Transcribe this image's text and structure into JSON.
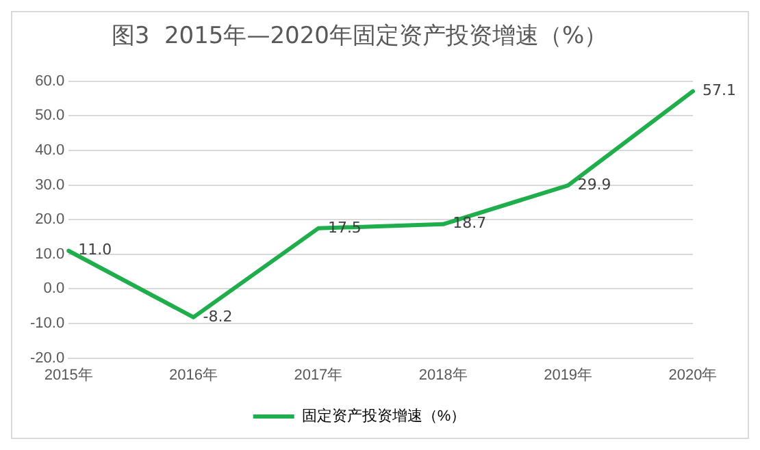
{
  "chart_data": {
    "type": "line",
    "title": "图3  2015年—2020年固定资产投资增速（%）",
    "categories": [
      "2015年",
      "2016年",
      "2017年",
      "2018年",
      "2019年",
      "2020年"
    ],
    "series": [
      {
        "name": "固定资产投资增速（%）",
        "color": "#1fae4b",
        "values": [
          11.0,
          -8.2,
          17.5,
          18.7,
          29.9,
          57.1
        ],
        "value_labels": [
          "11.0",
          "-8.2",
          "17.5",
          "18.7",
          "29.9",
          "57.1"
        ]
      }
    ],
    "ylim": [
      -20,
      60
    ],
    "yticks": [
      {
        "value": -20,
        "label": "-20.0"
      },
      {
        "value": -10,
        "label": "-10.0"
      },
      {
        "value": 0,
        "label": "0.0"
      },
      {
        "value": 10,
        "label": "10.0"
      },
      {
        "value": 20,
        "label": "20.0"
      },
      {
        "value": 30,
        "label": "30.0"
      },
      {
        "value": 40,
        "label": "40.0"
      },
      {
        "value": 50,
        "label": "50.0"
      },
      {
        "value": 60,
        "label": "60.0"
      }
    ],
    "grid": "y",
    "legend": "bottom",
    "marker": "none",
    "line_style": "solid"
  }
}
